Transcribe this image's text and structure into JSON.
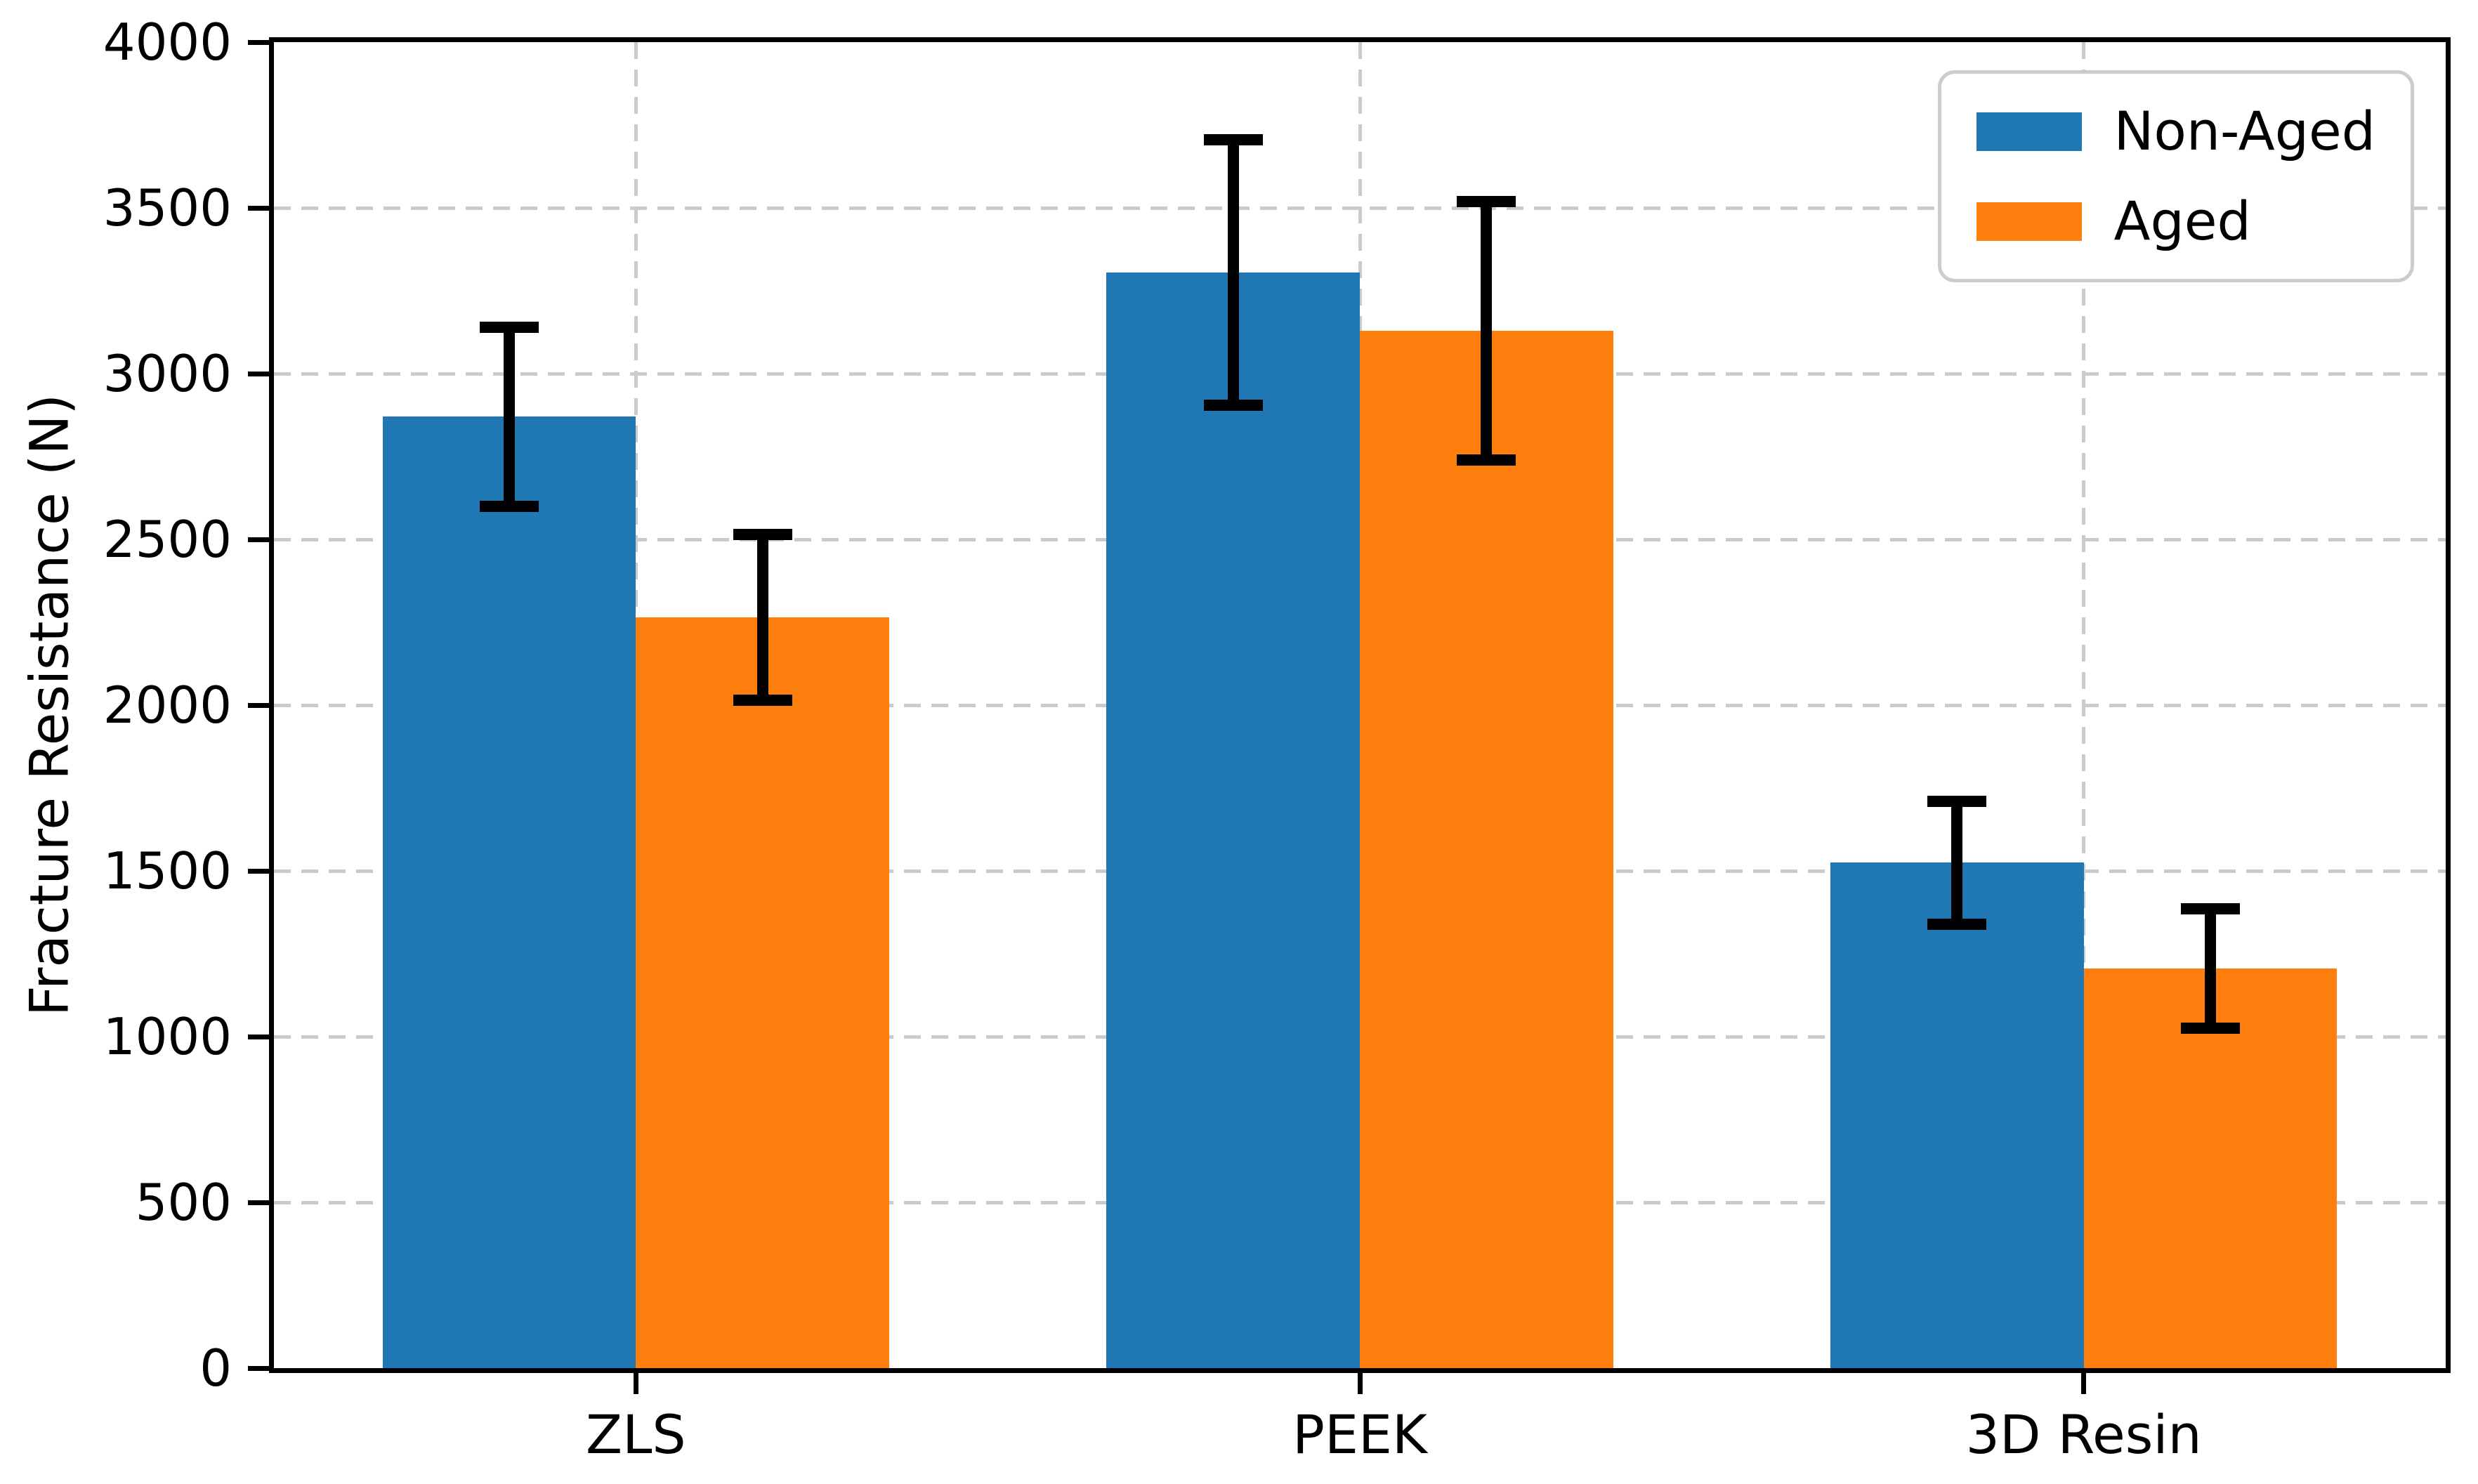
{
  "figure": {
    "background": "#ffffff",
    "axis_color": "#000000"
  },
  "chart_data": {
    "type": "bar",
    "title": "",
    "categories": [
      "ZLS",
      "PEEK",
      "3D Resin"
    ],
    "series": [
      {
        "name": "Non-Aged",
        "color": "#1f77b4",
        "values": [
          2870,
          3305,
          1525
        ],
        "errors": [
          270,
          400,
          185
        ]
      },
      {
        "name": "Aged",
        "color": "#ff7f0e",
        "values": [
          2265,
          3130,
          1205
        ],
        "errors": [
          250,
          390,
          180
        ]
      }
    ],
    "xlabel": "",
    "ylabel": "Fracture Resistance (N)",
    "ylim": [
      0,
      4000
    ],
    "ytick_step": 500,
    "ytick_labels": [
      "0",
      "500",
      "1000",
      "1500",
      "2000",
      "2500",
      "3000",
      "3500",
      "4000"
    ],
    "grid": true,
    "grid_style": "dashed",
    "grid_color": "#cbcbcb",
    "bar_width_fraction": 0.35,
    "error_bar_color": "#000000",
    "legend": {
      "position": "upper right",
      "labels": [
        "Non-Aged",
        "Aged"
      ]
    }
  }
}
